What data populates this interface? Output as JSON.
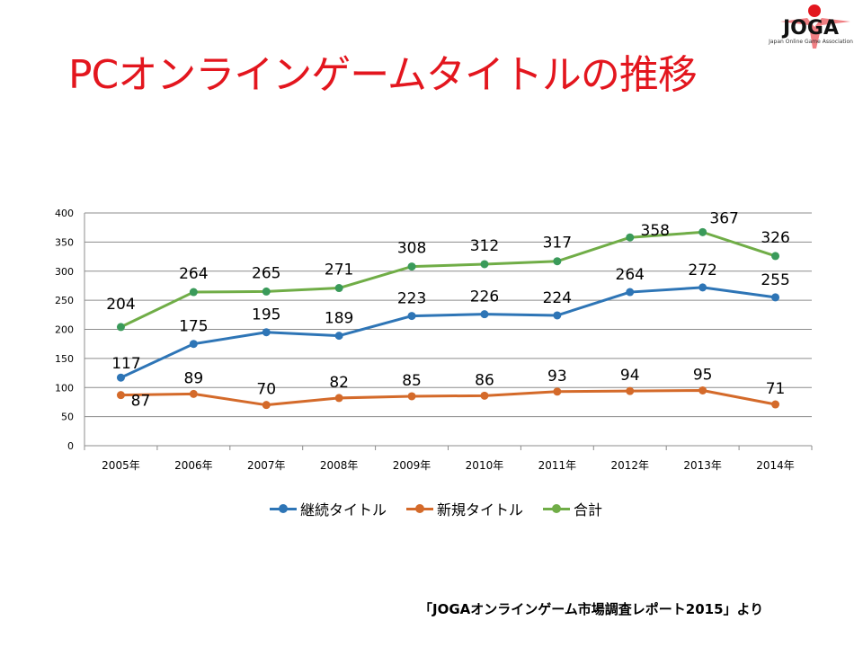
{
  "slide": {
    "title": "PCオンラインゲームタイトルの推移",
    "source": "「JOGAオンラインゲーム市場調査レポート2015」より",
    "logo": {
      "text": "JOGA",
      "subtitle": "Japan Online Game Association"
    }
  },
  "colors": {
    "title": "#e3161e",
    "continuing": "#2e75b6",
    "new": "#d46a2a",
    "total": "#70ad47",
    "total_marker": "#3a9a5a",
    "grid": "#8c8c8c"
  },
  "chart_data": {
    "type": "line",
    "title": "PCオンラインゲームタイトルの推移",
    "xlabel": "",
    "ylabel": "",
    "categories": [
      "2005年",
      "2006年",
      "2007年",
      "2008年",
      "2009年",
      "2010年",
      "2011年",
      "2012年",
      "2013年",
      "2014年"
    ],
    "ylim": [
      0,
      400
    ],
    "yticks": [
      0,
      50,
      100,
      150,
      200,
      250,
      300,
      350,
      400
    ],
    "grid": true,
    "legend_position": "bottom",
    "series": [
      {
        "name": "継続タイトル",
        "key": "continuing",
        "values": [
          117,
          175,
          195,
          189,
          223,
          226,
          224,
          264,
          272,
          255
        ]
      },
      {
        "name": "新規タイトル",
        "key": "new",
        "values": [
          87,
          89,
          70,
          82,
          85,
          86,
          93,
          94,
          95,
          71
        ]
      },
      {
        "name": "合計",
        "key": "total",
        "values": [
          204,
          264,
          265,
          271,
          308,
          312,
          317,
          358,
          367,
          326
        ]
      }
    ]
  }
}
